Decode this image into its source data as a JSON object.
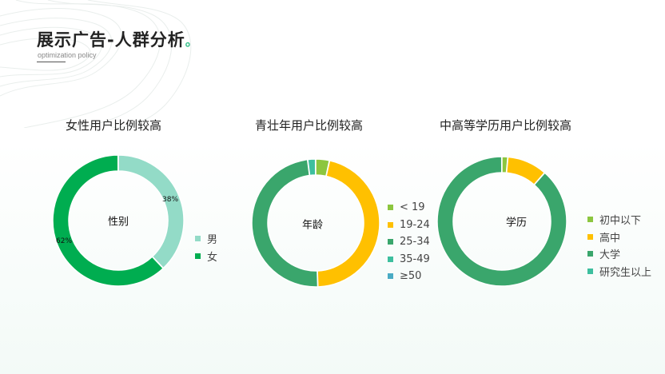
{
  "header": {
    "title": "展示广告-人群分析",
    "title_dot": "。",
    "subtitle": "optimization policy"
  },
  "chart_data": [
    {
      "type": "pie",
      "title": "女性用户比例较高",
      "center_label": "性别",
      "categories": [
        "男",
        "女"
      ],
      "values": [
        38,
        62
      ],
      "data_labels": [
        "38%",
        "62%"
      ],
      "colors": [
        "#93dbc7",
        "#00ad50"
      ],
      "legend_position": "right"
    },
    {
      "type": "pie",
      "title": "青壮年用户比例较高",
      "center_label": "年龄",
      "categories": [
        "< 19",
        "19-24",
        "25-34",
        "35-49",
        "≥50"
      ],
      "values": [
        3.5,
        46,
        48.5,
        2,
        0
      ],
      "colors": [
        "#8cc63f",
        "#ffc000",
        "#3aa66c",
        "#3dbf9e",
        "#4aabc4"
      ],
      "legend_position": "right"
    },
    {
      "type": "pie",
      "title": "中高等学历用户比例较高",
      "center_label": "学历",
      "categories": [
        "初中以下",
        "高中",
        "大学",
        "研究生以上"
      ],
      "values": [
        1.5,
        10,
        88.5,
        0
      ],
      "colors": [
        "#8cc63f",
        "#ffc000",
        "#3aa66c",
        "#3dbf9e"
      ],
      "legend_position": "right"
    }
  ]
}
